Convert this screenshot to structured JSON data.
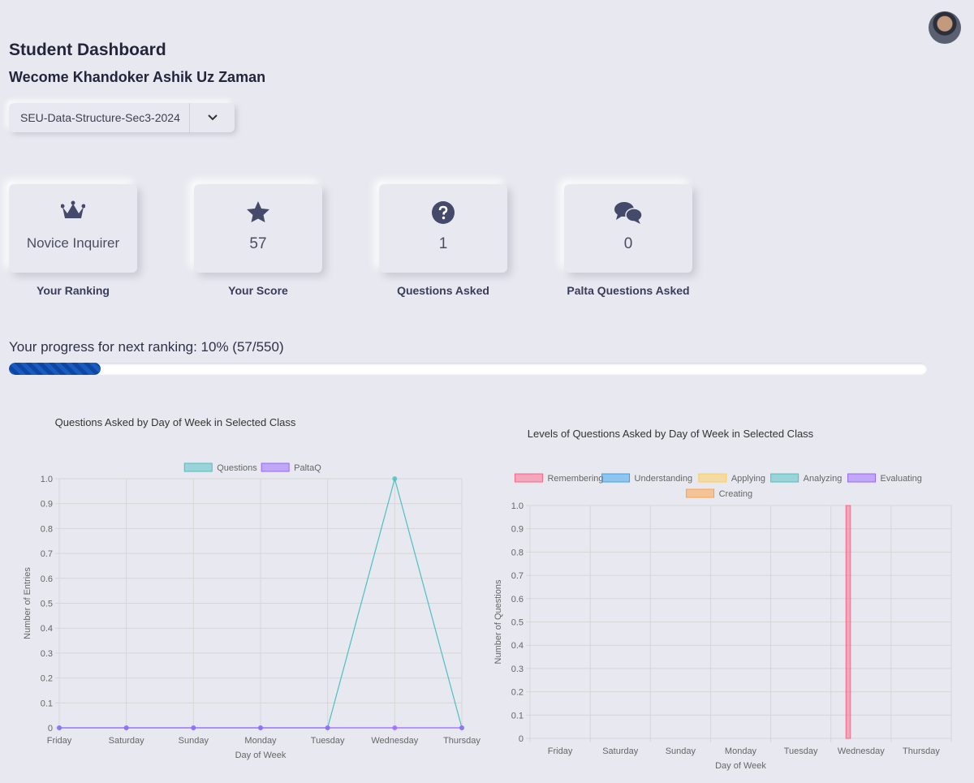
{
  "header": {
    "title": "Student Dashboard",
    "welcome": "Wecome Khandoker Ashik Uz Zaman"
  },
  "class_select": "SEU-Data-Structure-Sec3-2024",
  "cards": [
    {
      "value": "Novice Inquirer",
      "label": "Your Ranking"
    },
    {
      "value": 57,
      "label": "Your Score"
    },
    {
      "value": 1,
      "label": "Questions Asked"
    },
    {
      "value": 0,
      "label": "Palta Questions Asked"
    }
  ],
  "progress": {
    "text": "Your progress for next ranking: 10%  (57/550)",
    "percent": 10
  },
  "chart_data": [
    {
      "type": "line",
      "title": "Questions Asked by Day of Week in Selected Class",
      "xlabel": "Day of Week",
      "ylabel": "Number of Entries",
      "categories": [
        "Friday",
        "Saturday",
        "Sunday",
        "Monday",
        "Tuesday",
        "Wednesday",
        "Thursday"
      ],
      "series": [
        {
          "name": "Questions",
          "color": "#4bc0c0",
          "values": [
            0,
            0,
            0,
            0,
            0,
            1,
            0
          ]
        },
        {
          "name": "PaltaQ",
          "color": "#9966ff",
          "values": [
            0,
            0,
            0,
            0,
            0,
            0,
            0
          ]
        }
      ],
      "ylim": [
        0,
        1
      ],
      "yticks": [
        0,
        0.1,
        0.2,
        0.3,
        0.4,
        0.5,
        0.6,
        0.7,
        0.8,
        0.9,
        {
          "value": 1,
          "label": "1.0"
        }
      ],
      "grid": true,
      "legend": "top"
    },
    {
      "type": "bar",
      "title": "Levels of Questions Asked by Day of Week in Selected Class",
      "xlabel": "Day of Week",
      "ylabel": "Number of Questions",
      "categories": [
        "Friday",
        "Saturday",
        "Sunday",
        "Monday",
        "Tuesday",
        "Wednesday",
        "Thursday"
      ],
      "series": [
        {
          "name": "Remembering",
          "color": "#ff6384",
          "values": [
            0,
            0,
            0,
            0,
            0,
            1,
            0
          ]
        },
        {
          "name": "Understanding",
          "color": "#36a2eb",
          "values": [
            0,
            0,
            0,
            0,
            0,
            0,
            0
          ]
        },
        {
          "name": "Applying",
          "color": "#ffcd56",
          "values": [
            0,
            0,
            0,
            0,
            0,
            0,
            0
          ]
        },
        {
          "name": "Analyzing",
          "color": "#4bc0c0",
          "values": [
            0,
            0,
            0,
            0,
            0,
            0,
            0
          ]
        },
        {
          "name": "Evaluating",
          "color": "#9966ff",
          "values": [
            0,
            0,
            0,
            0,
            0,
            0,
            0
          ]
        },
        {
          "name": "Creating",
          "color": "#ff9f40",
          "values": [
            0,
            0,
            0,
            0,
            0,
            0,
            0
          ]
        }
      ],
      "ylim": [
        0,
        1
      ],
      "yticks": [
        0,
        0.1,
        0.2,
        0.3,
        0.4,
        0.5,
        0.6,
        0.7,
        0.8,
        0.9,
        {
          "value": 1,
          "label": "1.0"
        }
      ],
      "grid": true,
      "legend": "top"
    }
  ]
}
